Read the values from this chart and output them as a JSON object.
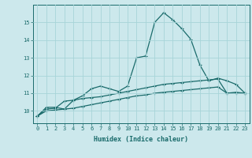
{
  "xlabel": "Humidex (Indice chaleur)",
  "bg_color": "#cce8ec",
  "grid_color": "#a8d4d8",
  "line_color": "#1a6b6b",
  "xlim": [
    -0.5,
    23.5
  ],
  "ylim": [
    9.3,
    16.0
  ],
  "xticks": [
    0,
    1,
    2,
    3,
    4,
    5,
    6,
    7,
    8,
    9,
    10,
    11,
    12,
    13,
    14,
    15,
    16,
    17,
    18,
    19,
    20,
    21,
    22,
    23
  ],
  "yticks": [
    10,
    11,
    12,
    13,
    14,
    15
  ],
  "line1_x": [
    0,
    1,
    2,
    3,
    4,
    5,
    6,
    7,
    8,
    9,
    10,
    11,
    12,
    13,
    14,
    15,
    16,
    17,
    18,
    19,
    20,
    21,
    22,
    23
  ],
  "line1_y": [
    9.7,
    10.2,
    10.2,
    10.1,
    10.6,
    10.85,
    11.25,
    11.4,
    11.25,
    11.1,
    11.4,
    13.0,
    13.1,
    15.0,
    15.55,
    15.15,
    14.65,
    14.05,
    12.6,
    11.7,
    11.85,
    11.7,
    11.5,
    11.0
  ],
  "line2_x": [
    0,
    1,
    2,
    3,
    4,
    5,
    6,
    7,
    8,
    9,
    10,
    11,
    12,
    13,
    14,
    15,
    16,
    17,
    18,
    19,
    20,
    21,
    22,
    23
  ],
  "line2_y": [
    9.7,
    10.1,
    10.15,
    10.55,
    10.6,
    10.7,
    10.75,
    10.8,
    10.9,
    11.0,
    11.1,
    11.2,
    11.3,
    11.4,
    11.5,
    11.55,
    11.6,
    11.65,
    11.7,
    11.75,
    11.8,
    11.0,
    11.05,
    11.0
  ],
  "line3_x": [
    0,
    1,
    2,
    3,
    4,
    5,
    6,
    7,
    8,
    9,
    10,
    11,
    12,
    13,
    14,
    15,
    16,
    17,
    18,
    19,
    20,
    21,
    22,
    23
  ],
  "line3_y": [
    9.7,
    10.0,
    10.05,
    10.1,
    10.15,
    10.25,
    10.35,
    10.45,
    10.55,
    10.65,
    10.75,
    10.85,
    10.9,
    11.0,
    11.05,
    11.1,
    11.15,
    11.2,
    11.25,
    11.3,
    11.35,
    11.0,
    11.0,
    10.98
  ]
}
